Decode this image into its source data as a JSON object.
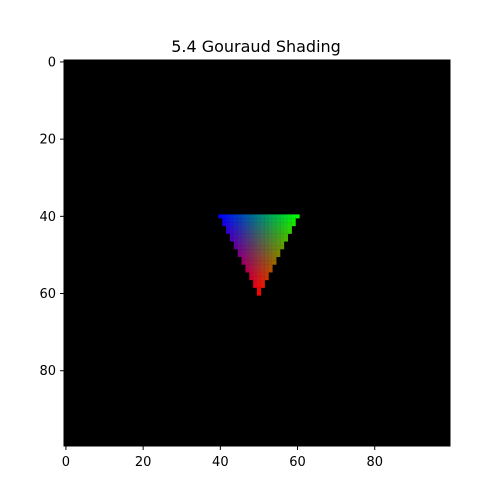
{
  "chart_data": {
    "type": "heatmap",
    "title": "5.4 Gouraud Shading",
    "xlabel": "",
    "ylabel": "",
    "image_size": [
      100,
      100
    ],
    "background_color": "#000000",
    "xlim": [
      0,
      99
    ],
    "ylim": [
      99,
      0
    ],
    "x_ticks": [
      0,
      20,
      40,
      60,
      80
    ],
    "y_ticks": [
      0,
      20,
      40,
      60,
      80
    ],
    "grid": false,
    "triangle": {
      "vertices": [
        {
          "x": 40,
          "y": 40,
          "color": "#0000ff"
        },
        {
          "x": 60,
          "y": 40,
          "color": "#00ff00"
        },
        {
          "x": 50,
          "y": 60,
          "color": "#ff0000"
        }
      ],
      "shading": "gouraud"
    }
  }
}
